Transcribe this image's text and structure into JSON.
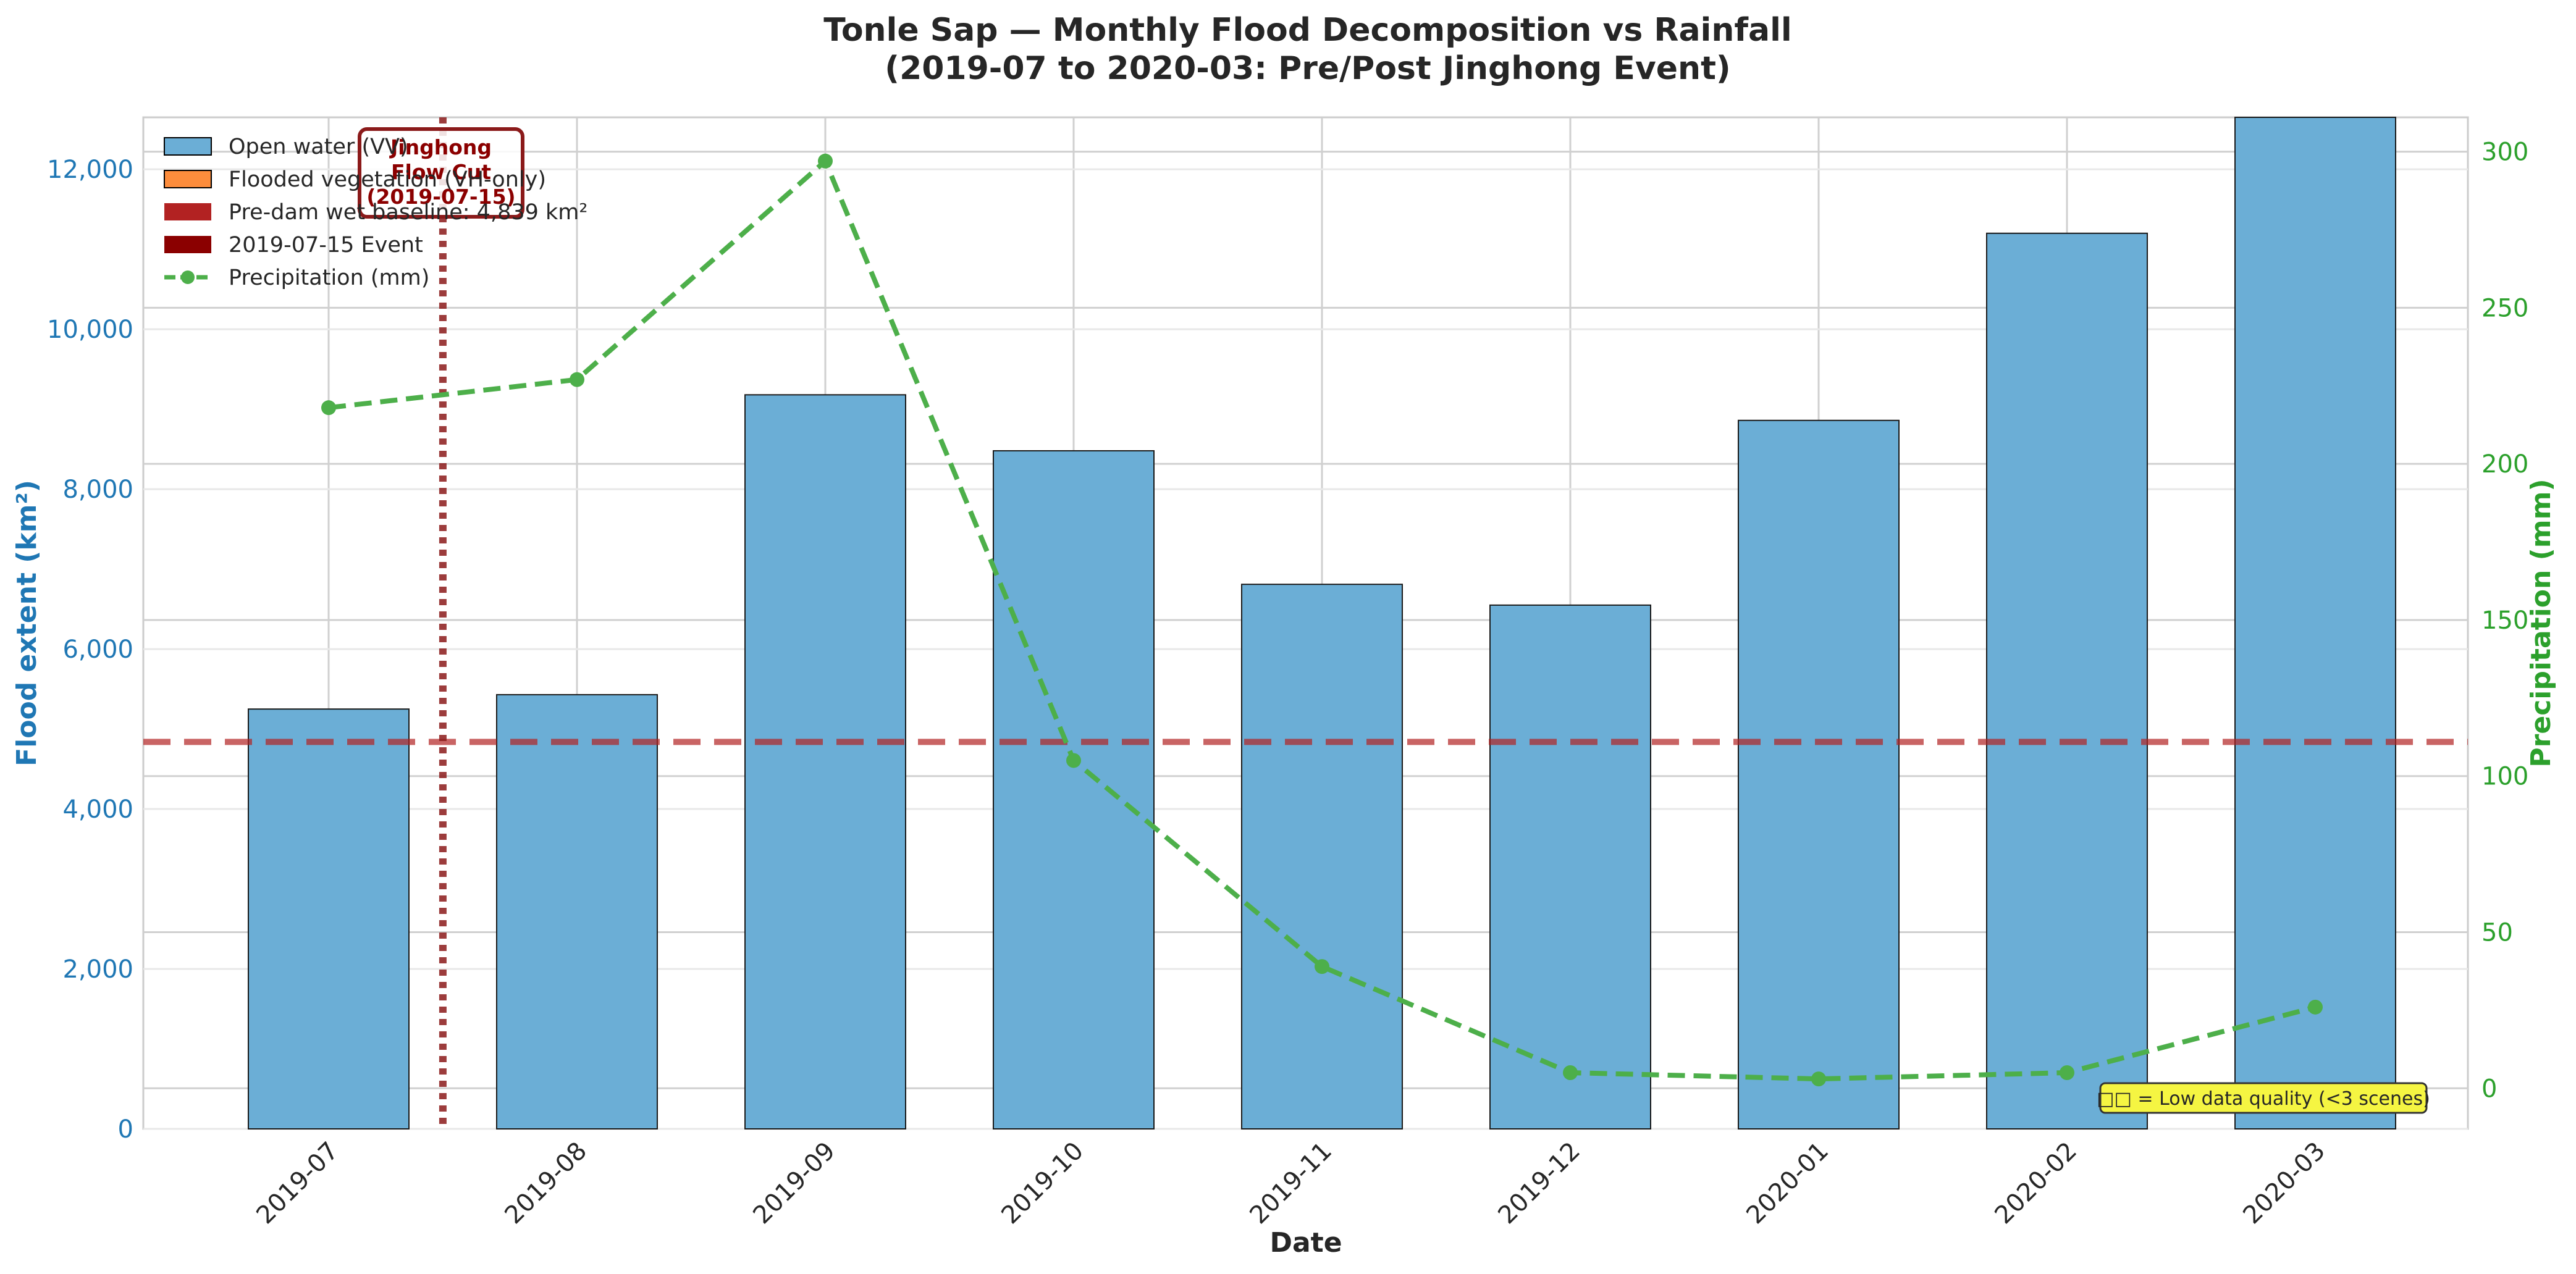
{
  "chart_data": {
    "type": "bar",
    "title": "Tonle Sap — Monthly Flood Decomposition vs Rainfall",
    "subtitle": "(2019-07 to 2020-03: Pre/Post Jinghong Event)",
    "xlabel": "Date",
    "ylabel": "Flood extent (km²)",
    "y2label": "Precipitation (mm)",
    "categories": [
      "2019-07",
      "2019-08",
      "2019-09",
      "2019-10",
      "2019-11",
      "2019-12",
      "2020-01",
      "2020-02",
      "2020-03"
    ],
    "ylim": [
      0,
      12650
    ],
    "y2lim": [
      -13,
      311
    ],
    "yticks": [
      0,
      2000,
      4000,
      6000,
      8000,
      10000,
      12000
    ],
    "yticks_labels": [
      "0",
      "2,000",
      "4,000",
      "6,000",
      "8,000",
      "10,000",
      "12,000"
    ],
    "y2ticks": [
      0,
      50,
      100,
      150,
      200,
      250,
      300
    ],
    "y2ticks_labels": [
      "0",
      "50",
      "100",
      "150",
      "200",
      "250",
      "300"
    ],
    "grid": true,
    "legend_position": "top-left",
    "series": [
      {
        "name": "Open water (VV)",
        "type": "bar",
        "color": "#6baed6",
        "values": [
          5250,
          5430,
          9180,
          8480,
          6810,
          6550,
          8860,
          11200,
          12650
        ]
      },
      {
        "name": "Flooded vegetation (VH-only)",
        "type": "bar",
        "color": "#fd8d3c",
        "values": [
          0,
          0,
          0,
          0,
          0,
          0,
          0,
          0,
          0
        ]
      },
      {
        "name": "Precipitation (mm)",
        "type": "line",
        "axis": "right",
        "color": "#4daf4a",
        "values": [
          218,
          227,
          297,
          105,
          39,
          5,
          3,
          5,
          26
        ]
      }
    ],
    "baseline": {
      "label": "Pre-dam wet baseline: 4,839 km²",
      "value": 4839,
      "color": "#b22222"
    },
    "event": {
      "label": "2019-07-15 Event",
      "position": 0.46,
      "color": "#8b0000",
      "annotation": [
        "Jinghong",
        "Flow Cut",
        "(2019-07-15)"
      ]
    },
    "note": "□□ = Low data quality (<3 scenes)"
  }
}
